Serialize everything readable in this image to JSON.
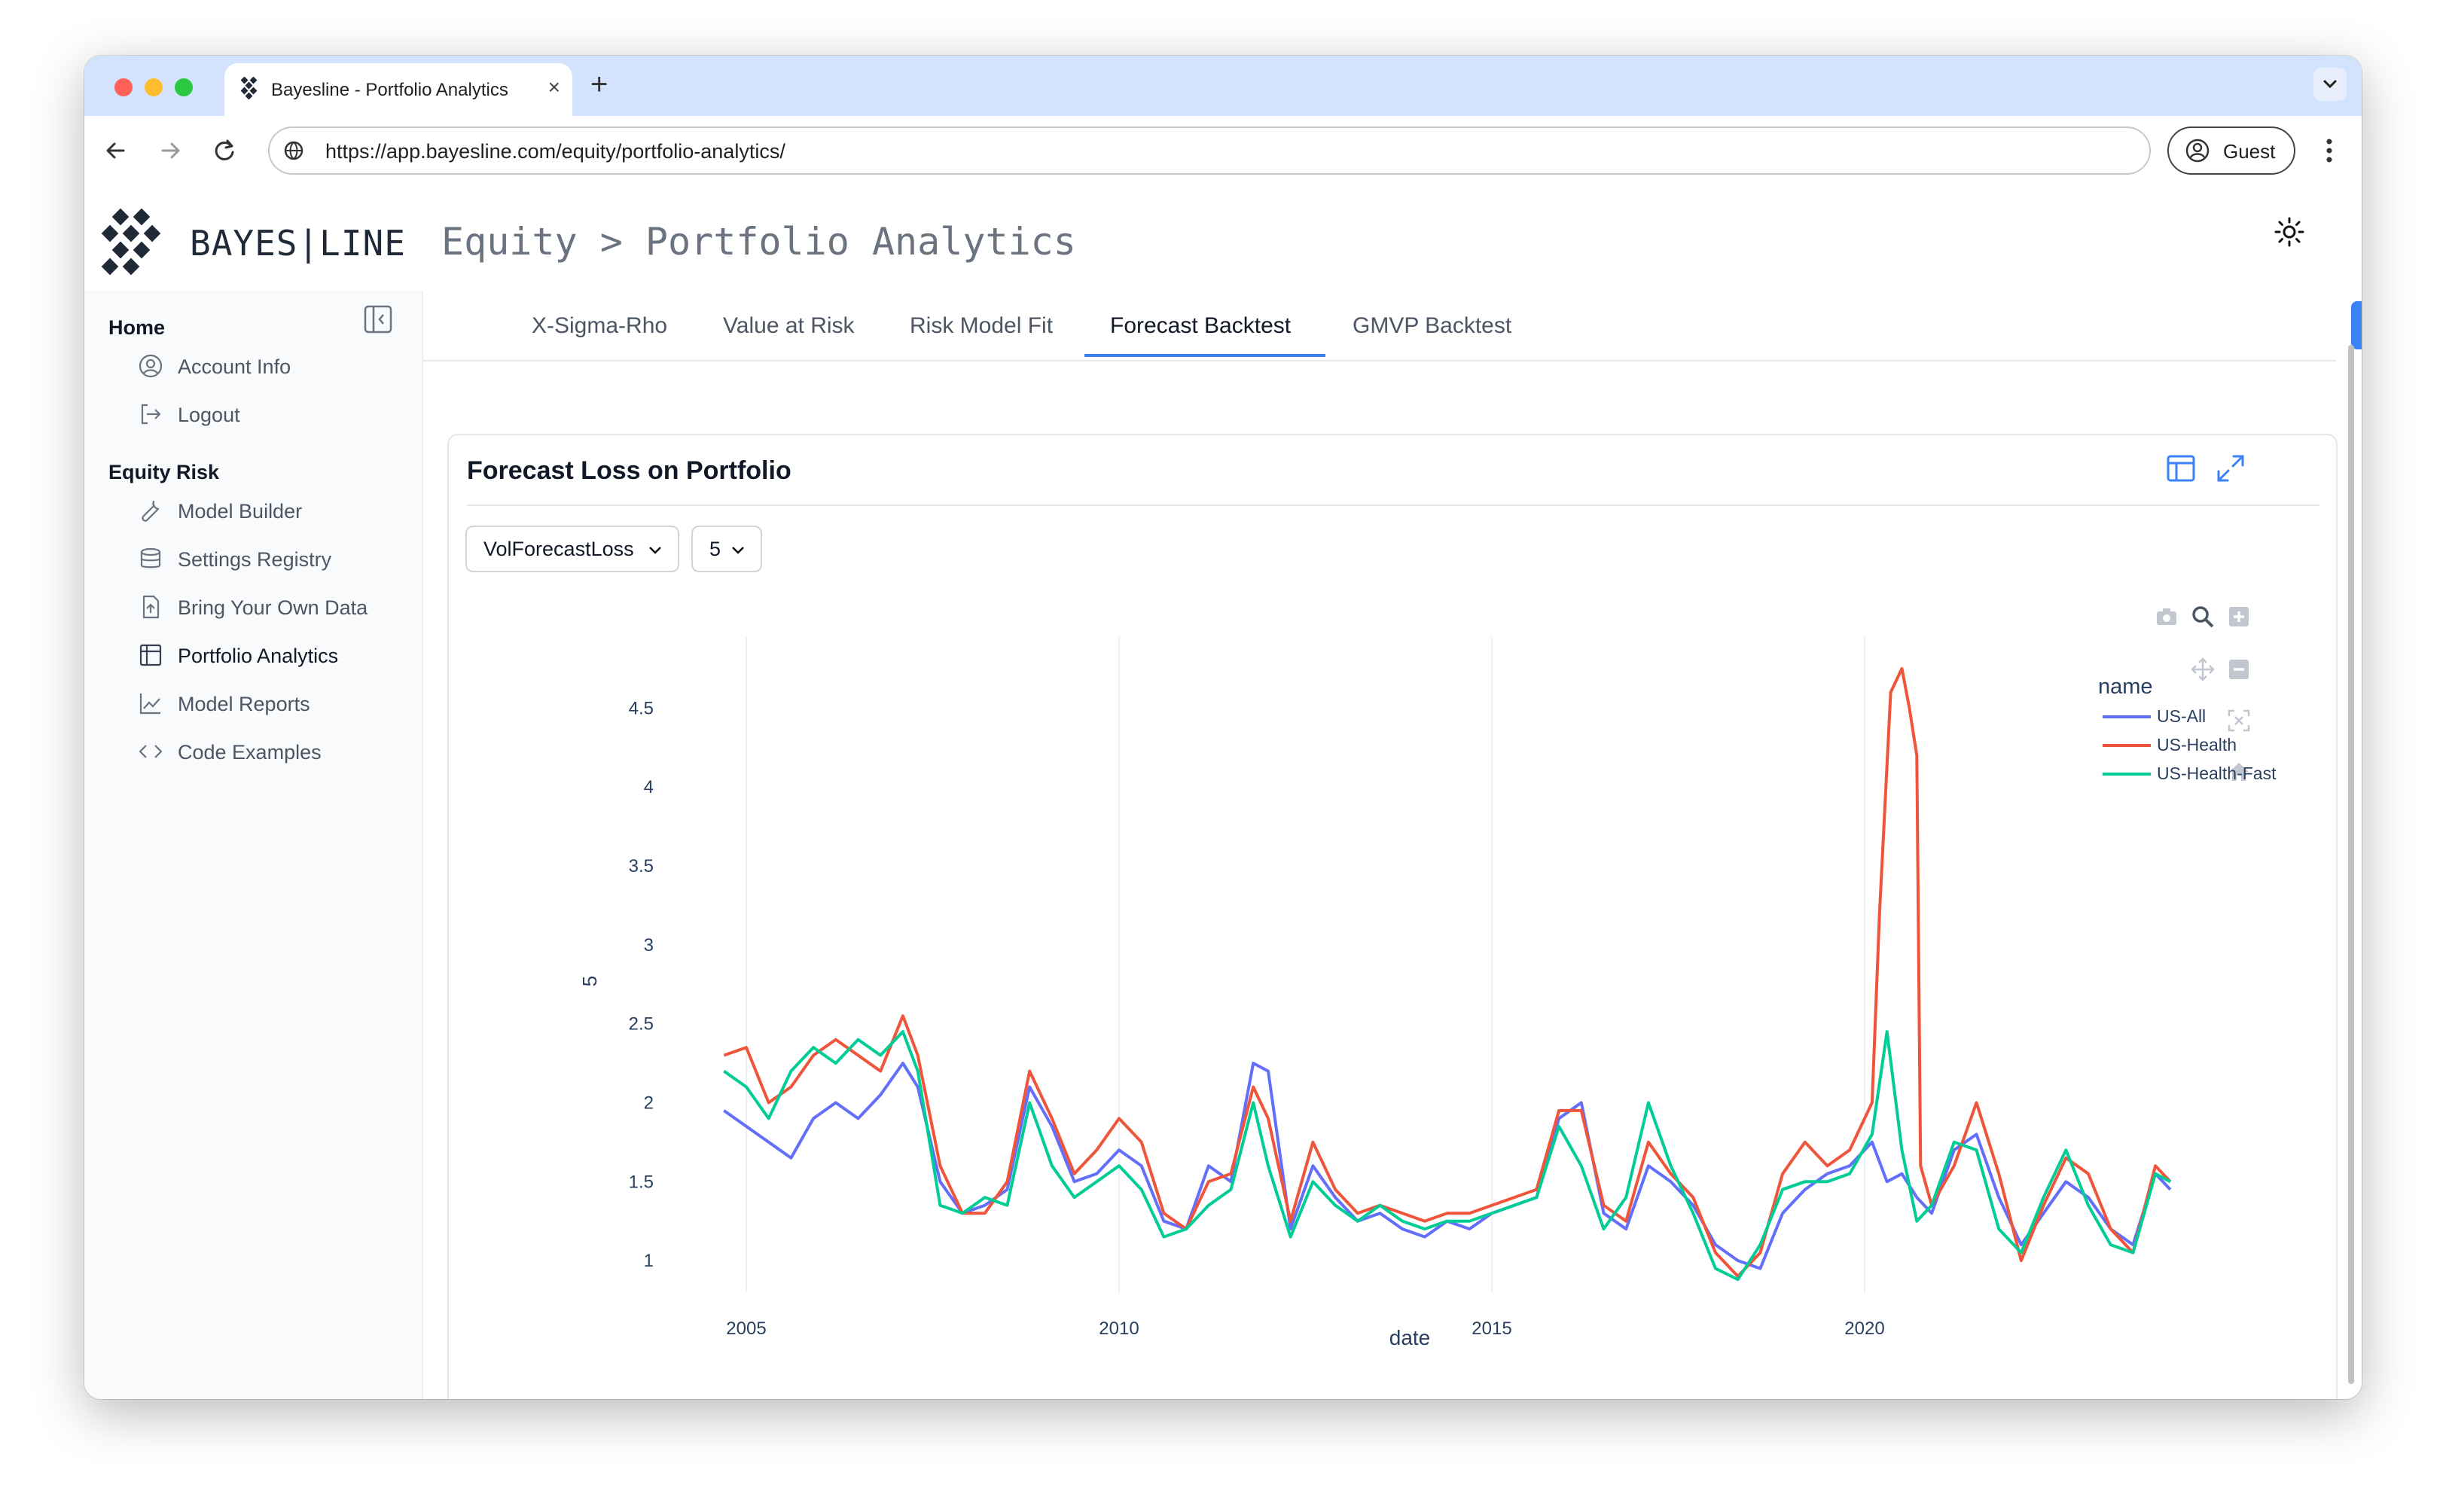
{
  "browser": {
    "tab_title": "Bayesline - Portfolio Analytics",
    "url": "https://app.bayesline.com/equity/portfolio-analytics/",
    "profile_label": "Guest"
  },
  "app": {
    "brand": "BAYES|LINE",
    "breadcrumb": "Equity > Portfolio Analytics"
  },
  "sidebar": {
    "sections": [
      {
        "heading": "Home",
        "items": [
          {
            "label": "Account Info",
            "icon": "user-circle-icon"
          },
          {
            "label": "Logout",
            "icon": "logout-icon"
          }
        ]
      },
      {
        "heading": "Equity Risk",
        "items": [
          {
            "label": "Model Builder",
            "icon": "wrench-icon"
          },
          {
            "label": "Settings Registry",
            "icon": "database-icon"
          },
          {
            "label": "Bring Your Own Data",
            "icon": "file-upload-icon"
          },
          {
            "label": "Portfolio Analytics",
            "icon": "table-icon",
            "active": true
          },
          {
            "label": "Model Reports",
            "icon": "line-chart-icon"
          },
          {
            "label": "Code Examples",
            "icon": "code-icon"
          }
        ]
      }
    ]
  },
  "tabs": [
    {
      "label": "X-Sigma-Rho"
    },
    {
      "label": "Value at Risk"
    },
    {
      "label": "Risk Model Fit"
    },
    {
      "label": "Forecast Backtest",
      "active": true
    },
    {
      "label": "GMVP Backtest"
    }
  ],
  "card": {
    "title": "Forecast Loss on Portfolio",
    "metric_select": "VolForecastLoss",
    "window_select": "5"
  },
  "colors": {
    "accent": "#3b82f6",
    "us_all": "#636efa",
    "us_health": "#ef553b",
    "us_health_fast": "#00cc96"
  },
  "chart_data": {
    "type": "line",
    "xlabel": "date",
    "ylabel": "5",
    "legend_title": "name",
    "legend_position": "right",
    "x_ticks": [
      "2005",
      "2010",
      "2015",
      "2020"
    ],
    "y_ticks": [
      "1",
      "1.5",
      "2",
      "2.5",
      "3",
      "3.5",
      "4",
      "4.5"
    ],
    "x_range": [
      2004.0,
      2024.0
    ],
    "y_range": [
      0.8,
      4.95
    ],
    "grid": true,
    "series": [
      {
        "name": "US-All",
        "color": "#636efa",
        "x": [
          2004.7,
          2005.0,
          2005.3,
          2005.6,
          2005.9,
          2006.2,
          2006.5,
          2006.8,
          2007.1,
          2007.3,
          2007.6,
          2007.9,
          2008.2,
          2008.5,
          2008.8,
          2009.1,
          2009.4,
          2009.7,
          2010.0,
          2010.3,
          2010.6,
          2010.9,
          2011.2,
          2011.5,
          2011.8,
          2012.0,
          2012.3,
          2012.6,
          2012.9,
          2013.2,
          2013.5,
          2013.8,
          2014.1,
          2014.4,
          2014.7,
          2015.0,
          2015.3,
          2015.6,
          2015.9,
          2016.2,
          2016.5,
          2016.8,
          2017.1,
          2017.4,
          2017.7,
          2018.0,
          2018.3,
          2018.6,
          2018.9,
          2019.2,
          2019.5,
          2019.8,
          2020.1,
          2020.3,
          2020.5,
          2020.7,
          2020.9,
          2021.2,
          2021.5,
          2021.8,
          2022.1,
          2022.4,
          2022.7,
          2023.0,
          2023.3,
          2023.6,
          2023.9,
          2024.1
        ],
        "y": [
          1.95,
          1.85,
          1.75,
          1.65,
          1.9,
          2.0,
          1.9,
          2.05,
          2.25,
          2.1,
          1.5,
          1.3,
          1.35,
          1.45,
          2.1,
          1.85,
          1.5,
          1.55,
          1.7,
          1.6,
          1.25,
          1.2,
          1.6,
          1.5,
          2.25,
          2.2,
          1.2,
          1.6,
          1.4,
          1.25,
          1.3,
          1.2,
          1.15,
          1.25,
          1.2,
          1.3,
          1.35,
          1.4,
          1.9,
          2.0,
          1.3,
          1.2,
          1.6,
          1.5,
          1.35,
          1.1,
          1.0,
          0.95,
          1.3,
          1.45,
          1.55,
          1.6,
          1.75,
          1.5,
          1.55,
          1.4,
          1.3,
          1.7,
          1.8,
          1.4,
          1.1,
          1.3,
          1.5,
          1.4,
          1.2,
          1.1,
          1.55,
          1.45
        ]
      },
      {
        "name": "US-Health",
        "color": "#ef553b",
        "x": [
          2004.7,
          2005.0,
          2005.3,
          2005.6,
          2005.9,
          2006.2,
          2006.5,
          2006.8,
          2007.1,
          2007.3,
          2007.6,
          2007.9,
          2008.2,
          2008.5,
          2008.8,
          2009.1,
          2009.4,
          2009.7,
          2010.0,
          2010.3,
          2010.6,
          2010.9,
          2011.2,
          2011.5,
          2011.8,
          2012.0,
          2012.3,
          2012.6,
          2012.9,
          2013.2,
          2013.5,
          2013.8,
          2014.1,
          2014.4,
          2014.7,
          2015.0,
          2015.3,
          2015.6,
          2015.9,
          2016.2,
          2016.5,
          2016.8,
          2017.1,
          2017.4,
          2017.7,
          2018.0,
          2018.3,
          2018.6,
          2018.9,
          2019.2,
          2019.5,
          2019.8,
          2020.1,
          2020.2,
          2020.35,
          2020.5,
          2020.6,
          2020.7,
          2020.75,
          2020.9,
          2021.2,
          2021.5,
          2021.8,
          2022.1,
          2022.4,
          2022.7,
          2023.0,
          2023.3,
          2023.6,
          2023.9,
          2024.1
        ],
        "y": [
          2.3,
          2.35,
          2.0,
          2.1,
          2.3,
          2.4,
          2.3,
          2.2,
          2.55,
          2.3,
          1.6,
          1.3,
          1.3,
          1.5,
          2.2,
          1.9,
          1.55,
          1.7,
          1.9,
          1.75,
          1.3,
          1.2,
          1.5,
          1.55,
          2.1,
          1.9,
          1.25,
          1.75,
          1.45,
          1.3,
          1.35,
          1.3,
          1.25,
          1.3,
          1.3,
          1.35,
          1.4,
          1.45,
          1.95,
          1.95,
          1.35,
          1.25,
          1.75,
          1.55,
          1.4,
          1.05,
          0.9,
          1.05,
          1.55,
          1.75,
          1.6,
          1.7,
          2.0,
          3.2,
          4.6,
          4.75,
          4.5,
          4.2,
          1.6,
          1.35,
          1.6,
          2.0,
          1.55,
          1.0,
          1.35,
          1.65,
          1.55,
          1.2,
          1.05,
          1.6,
          1.5
        ]
      },
      {
        "name": "US-Health-Fast",
        "color": "#00cc96",
        "x": [
          2004.7,
          2005.0,
          2005.3,
          2005.6,
          2005.9,
          2006.2,
          2006.5,
          2006.8,
          2007.1,
          2007.3,
          2007.6,
          2007.9,
          2008.2,
          2008.5,
          2008.8,
          2009.1,
          2009.4,
          2009.7,
          2010.0,
          2010.3,
          2010.6,
          2010.9,
          2011.2,
          2011.5,
          2011.8,
          2012.0,
          2012.3,
          2012.6,
          2012.9,
          2013.2,
          2013.5,
          2013.8,
          2014.1,
          2014.4,
          2014.7,
          2015.0,
          2015.3,
          2015.6,
          2015.9,
          2016.2,
          2016.5,
          2016.8,
          2017.1,
          2017.4,
          2017.7,
          2018.0,
          2018.3,
          2018.6,
          2018.9,
          2019.2,
          2019.5,
          2019.8,
          2020.1,
          2020.3,
          2020.5,
          2020.7,
          2020.9,
          2021.2,
          2021.5,
          2021.8,
          2022.1,
          2022.4,
          2022.7,
          2023.0,
          2023.3,
          2023.6,
          2023.9,
          2024.1
        ],
        "y": [
          2.2,
          2.1,
          1.9,
          2.2,
          2.35,
          2.25,
          2.4,
          2.3,
          2.45,
          2.2,
          1.35,
          1.3,
          1.4,
          1.35,
          2.0,
          1.6,
          1.4,
          1.5,
          1.6,
          1.45,
          1.15,
          1.2,
          1.35,
          1.45,
          2.0,
          1.6,
          1.15,
          1.5,
          1.35,
          1.25,
          1.35,
          1.25,
          1.2,
          1.25,
          1.25,
          1.3,
          1.35,
          1.4,
          1.85,
          1.6,
          1.2,
          1.4,
          2.0,
          1.6,
          1.3,
          0.95,
          0.88,
          1.1,
          1.45,
          1.5,
          1.5,
          1.55,
          1.8,
          2.45,
          1.7,
          1.25,
          1.35,
          1.75,
          1.7,
          1.2,
          1.05,
          1.4,
          1.7,
          1.35,
          1.1,
          1.05,
          1.55,
          1.5
        ]
      }
    ]
  }
}
